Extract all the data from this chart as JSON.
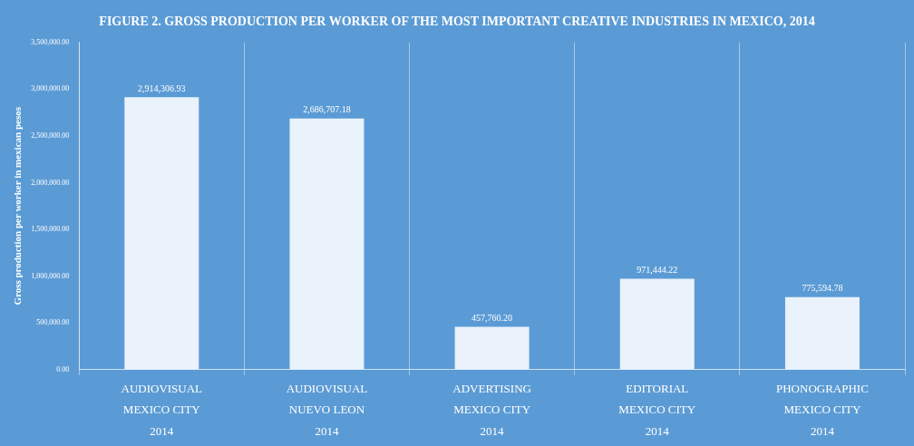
{
  "chart_data": {
    "type": "bar",
    "title": "FIGURE 2. GROSS PRODUCTION PER WORKER OF THE MOST IMPORTANT CREATIVE INDUSTRIES IN MEXICO, 2014",
    "ylabel": "Gross production per worker in mexican pesos",
    "categories": [
      "AUDIOVISUAL\nMEXICO CITY\n2014",
      "AUDIOVISUAL\nNUEVO LEON\n2014",
      "ADVERTISING\nMEXICO CITY\n2014",
      "EDITORIAL\nMEXICO CITY\n2014",
      "PHONOGRAPHIC\nMEXICO CITY\n2014"
    ],
    "values": [
      2914306.93,
      2686707.18,
      457760.2,
      971444.22,
      775594.78
    ],
    "value_labels": [
      "2,914,306.93",
      "2,686,707.18",
      "457,760.20",
      "971,444.22",
      "775,594.78"
    ],
    "color": "#eaf2fb",
    "ylim": [
      0,
      3500000
    ],
    "yticks": [
      {
        "value": 0,
        "label": "0.00"
      },
      {
        "value": 500000,
        "label": "500,000.00"
      },
      {
        "value": 1000000,
        "label": "1,000,000.00"
      },
      {
        "value": 1500000,
        "label": "1,500,000.00"
      },
      {
        "value": 2000000,
        "label": "2,000,000.00"
      },
      {
        "value": 2500000,
        "label": "2,500,000.00"
      },
      {
        "value": 3000000,
        "label": "3,000,000.00"
      },
      {
        "value": 3500000,
        "label": "3,500,000.00"
      }
    ],
    "grid": "x"
  }
}
